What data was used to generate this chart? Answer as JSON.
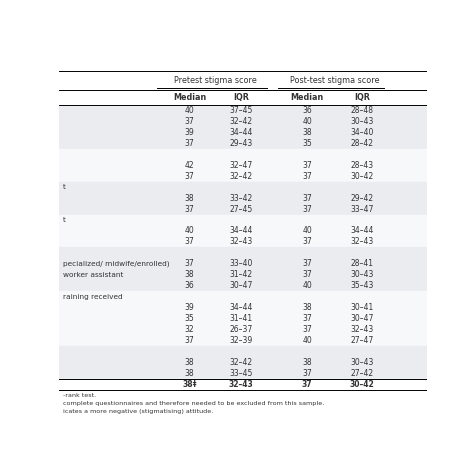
{
  "col_headers_top": [
    "",
    "Pretest stigma score",
    "",
    "Post-test stigma score",
    ""
  ],
  "col_headers_sub": [
    "",
    "Median",
    "IQR",
    "Median",
    "IQR"
  ],
  "rows": [
    [
      "",
      "40",
      "37–45",
      "36",
      "28–48"
    ],
    [
      "",
      "37",
      "32–42",
      "40",
      "30–43"
    ],
    [
      "",
      "39",
      "34–44",
      "38",
      "34–40"
    ],
    [
      "",
      "37",
      "29–43",
      "35",
      "28–42"
    ],
    [
      "",
      "",
      "",
      "",
      ""
    ],
    [
      "",
      "42",
      "32–47",
      "37",
      "28–43"
    ],
    [
      "",
      "37",
      "32–42",
      "37",
      "30–42"
    ],
    [
      "t",
      "",
      "",
      "",
      ""
    ],
    [
      "",
      "38",
      "33–42",
      "37",
      "29–42"
    ],
    [
      "",
      "37",
      "27–45",
      "37",
      "33–47"
    ],
    [
      "t",
      "",
      "",
      "",
      ""
    ],
    [
      "",
      "40",
      "34–44",
      "40",
      "34–44"
    ],
    [
      "",
      "37",
      "32–43",
      "37",
      "32–43"
    ],
    [
      "",
      "",
      "",
      "",
      ""
    ],
    [
      "pecialized/ midwife/enrolled)",
      "37",
      "33–40",
      "37",
      "28–41"
    ],
    [
      "worker assistant",
      "38",
      "31–42",
      "37",
      "30–43"
    ],
    [
      "",
      "36",
      "30–47",
      "40",
      "35–43"
    ],
    [
      "raining received",
      "",
      "",
      "",
      ""
    ],
    [
      "",
      "39",
      "34–44",
      "38",
      "30–41"
    ],
    [
      "",
      "35",
      "31–41",
      "37",
      "30–47"
    ],
    [
      "",
      "32",
      "26–37",
      "37",
      "32–43"
    ],
    [
      "",
      "37",
      "32–39",
      "40",
      "27–47"
    ],
    [
      "",
      "",
      "",
      "",
      ""
    ],
    [
      "",
      "38",
      "32–42",
      "38",
      "30–43"
    ],
    [
      "",
      "38",
      "33–45",
      "37",
      "27–42"
    ],
    [
      "",
      "38‡",
      "32–43",
      "37",
      "30–42"
    ]
  ],
  "bold_row_indices": [
    25
  ],
  "footnotes": [
    "-rank test.",
    "complete questionnaires and therefore needed to be excluded from this sample.",
    "icates a more negative (stigmatising) attitude."
  ],
  "bg_colors": [
    "#eaecf0",
    "#eaecf0",
    "#eaecf0",
    "#eaecf0",
    "#f7f8fa",
    "#f7f8fa",
    "#f7f8fa",
    "#eaecf0",
    "#eaecf0",
    "#eaecf0",
    "#f7f8fa",
    "#f7f8fa",
    "#f7f8fa",
    "#eaecf0",
    "#eaecf0",
    "#eaecf0",
    "#eaecf0",
    "#f7f8fa",
    "#f7f8fa",
    "#f7f8fa",
    "#f7f8fa",
    "#f7f8fa",
    "#eaecf0",
    "#eaecf0",
    "#eaecf0",
    "#ffffff"
  ],
  "text_color": "#333333",
  "header_bg": "#ffffff",
  "figsize": [
    4.74,
    4.74
  ],
  "dpi": 100
}
